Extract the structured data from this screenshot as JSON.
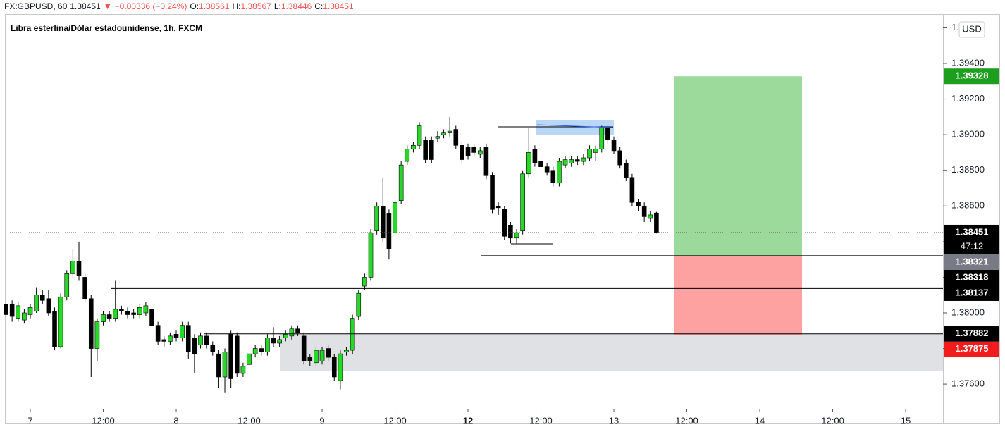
{
  "chart_data": {
    "type": "candlestick",
    "title": "Libra esterlina/Dólar estadounidense, 1h, FXCM",
    "header": [
      {
        "text": "FX:GBPUSD, 60",
        "color": "#131722"
      },
      {
        "text": "1.38451",
        "color": "#131722"
      },
      {
        "text": "▼",
        "color": "#ef5350"
      },
      {
        "text": "−0.00336 (−0.24%)",
        "color": "#ef5350"
      },
      {
        "text": "O:",
        "color": "#131722"
      },
      {
        "text": "1.38561",
        "color": "#ef5350"
      },
      {
        "text": "H:",
        "color": "#131722"
      },
      {
        "text": "1.38567",
        "color": "#ef5350"
      },
      {
        "text": "L:",
        "color": "#131722"
      },
      {
        "text": "1.38446",
        "color": "#ef5350"
      },
      {
        "text": "C:",
        "color": "#131722"
      },
      {
        "text": "1.38451",
        "color": "#ef5350"
      }
    ],
    "currency": "USD",
    "up_color": "#26d926",
    "down_color": "#000000",
    "x": [
      -4,
      -3,
      -2,
      -1,
      0,
      1,
      2,
      3,
      4,
      5,
      6,
      7,
      8,
      9,
      10,
      11,
      12,
      13,
      14,
      15,
      16,
      17,
      18,
      19,
      20,
      21,
      22,
      23,
      24,
      25,
      26,
      27,
      28,
      29,
      30,
      31,
      32,
      33,
      34,
      35,
      36,
      37,
      38,
      39,
      40,
      41,
      42,
      43,
      44,
      45,
      46,
      47,
      48,
      49,
      50,
      51,
      52,
      53,
      54,
      55,
      56,
      57,
      58,
      59,
      60,
      61,
      62,
      63,
      64,
      65,
      66,
      67,
      68,
      69,
      70,
      71,
      72,
      73,
      74,
      75,
      76,
      77,
      78,
      79,
      80,
      81,
      82,
      83,
      84,
      85,
      86,
      87,
      88,
      89,
      90,
      91,
      92,
      93,
      94,
      95,
      96,
      97,
      98,
      99,
      100,
      101,
      102,
      103
    ],
    "open": [
      1.3805,
      1.3805,
      1.3797,
      1.3796,
      1.3799,
      1.3801,
      1.381,
      1.3808,
      1.3801,
      1.3781,
      1.3809,
      1.3822,
      1.3829,
      1.382,
      1.3808,
      1.378,
      1.3795,
      1.3799,
      1.3797,
      1.3802,
      1.3801,
      1.38,
      1.3799,
      1.38,
      1.3802,
      1.3793,
      1.3785,
      1.3784,
      1.3788,
      1.3786,
      1.3793,
      1.3786,
      1.3782,
      1.3787,
      1.3782,
      1.3777,
      1.3764,
      1.3788,
      1.3787,
      1.3766,
      1.3771,
      1.3777,
      1.378,
      1.3778,
      1.3786,
      1.3783,
      1.3786,
      1.3787,
      1.3791,
      1.3787,
      1.3775,
      1.3772,
      1.3773,
      1.378,
      1.3775,
      1.3762,
      1.3778,
      1.3779,
      1.3798,
      1.3815,
      1.382,
      1.3846,
      1.386,
      1.3856,
      1.3845,
      1.3863,
      1.3885,
      1.3892,
      1.3894,
      1.3897,
      1.3897,
      1.3898,
      1.39,
      1.3901,
      1.3903,
      1.3894,
      1.3893,
      1.3893,
      1.3889,
      1.3893,
      1.3877,
      1.386,
      1.3858,
      1.3849,
      1.3842,
      1.3846,
      1.3878,
      1.3892,
      1.3885,
      1.3882,
      1.388,
      1.3873,
      1.3883,
      1.3884,
      1.3886,
      1.3885,
      1.3887,
      1.389,
      1.3892,
      1.3904,
      1.3897,
      1.3891,
      1.3884,
      1.3876,
      1.3862,
      1.386,
      1.3853,
      1.38561
    ],
    "high": [
      1.3807,
      1.3807,
      1.3806,
      1.3802,
      1.3805,
      1.3814,
      1.3813,
      1.3813,
      1.3803,
      1.3811,
      1.3824,
      1.3836,
      1.384,
      1.3822,
      1.381,
      1.3797,
      1.3801,
      1.3801,
      1.3818,
      1.3804,
      1.3803,
      1.3802,
      1.3805,
      1.3806,
      1.3804,
      1.3795,
      1.3787,
      1.3789,
      1.379,
      1.3795,
      1.3795,
      1.3788,
      1.3789,
      1.3789,
      1.3784,
      1.3779,
      1.378,
      1.379,
      1.3789,
      1.3772,
      1.3779,
      1.3782,
      1.3782,
      1.3788,
      1.3792,
      1.3787,
      1.379,
      1.3793,
      1.3793,
      1.3789,
      1.3777,
      1.3781,
      1.3781,
      1.3782,
      1.3777,
      1.3779,
      1.3781,
      1.3799,
      1.3813,
      1.3822,
      1.3847,
      1.3862,
      1.3876,
      1.3858,
      1.3864,
      1.3885,
      1.3894,
      1.3896,
      1.3907,
      1.3899,
      1.3899,
      1.3902,
      1.3903,
      1.391,
      1.3905,
      1.3896,
      1.3895,
      1.3895,
      1.3893,
      1.3895,
      1.3879,
      1.3862,
      1.386,
      1.3851,
      1.3847,
      1.388,
      1.3904,
      1.3894,
      1.3887,
      1.3884,
      1.3882,
      1.3887,
      1.3888,
      1.3888,
      1.3888,
      1.3889,
      1.3894,
      1.3894,
      1.3905,
      1.3905,
      1.3899,
      1.3893,
      1.3886,
      1.3878,
      1.3864,
      1.3862,
      1.3857,
      1.38567
    ],
    "low": [
      1.3796,
      1.3795,
      1.3795,
      1.3794,
      1.3797,
      1.38,
      1.3805,
      1.3798,
      1.3779,
      1.378,
      1.3807,
      1.382,
      1.3818,
      1.3806,
      1.3764,
      1.3773,
      1.3793,
      1.3795,
      1.3795,
      1.3799,
      1.3797,
      1.3797,
      1.3797,
      1.3798,
      1.3791,
      1.3782,
      1.3781,
      1.3782,
      1.3784,
      1.3784,
      1.3774,
      1.3766,
      1.378,
      1.378,
      1.3776,
      1.3758,
      1.3755,
      1.3758,
      1.3764,
      1.3764,
      1.3769,
      1.3775,
      1.3776,
      1.3776,
      1.3781,
      1.3781,
      1.3784,
      1.3785,
      1.3787,
      1.3771,
      1.377,
      1.377,
      1.3771,
      1.3773,
      1.3762,
      1.3757,
      1.3776,
      1.3777,
      1.3796,
      1.3813,
      1.3818,
      1.3844,
      1.384,
      1.383,
      1.3843,
      1.3861,
      1.3883,
      1.389,
      1.3892,
      1.3884,
      1.3884,
      1.3896,
      1.3898,
      1.3899,
      1.3892,
      1.3884,
      1.3886,
      1.3888,
      1.3887,
      1.3875,
      1.3856,
      1.3855,
      1.3841,
      1.3839,
      1.3839,
      1.3844,
      1.3876,
      1.3882,
      1.388,
      1.3877,
      1.3871,
      1.3871,
      1.3881,
      1.3882,
      1.3883,
      1.3883,
      1.3885,
      1.3885,
      1.389,
      1.3895,
      1.3889,
      1.3881,
      1.3874,
      1.386,
      1.3857,
      1.3851,
      1.3851,
      1.38446
    ],
    "close": [
      1.3799,
      1.3798,
      1.3804,
      1.38,
      1.3803,
      1.381,
      1.3807,
      1.38,
      1.3781,
      1.3809,
      1.3822,
      1.3829,
      1.3821,
      1.3808,
      1.378,
      1.3795,
      1.3799,
      1.3797,
      1.3802,
      1.3801,
      1.3799,
      1.3799,
      1.3803,
      1.3804,
      1.3793,
      1.3784,
      1.3784,
      1.3787,
      1.3786,
      1.3793,
      1.3778,
      1.3777,
      1.3787,
      1.3782,
      1.3778,
      1.3764,
      1.3778,
      1.3763,
      1.3766,
      1.377,
      1.3777,
      1.378,
      1.3778,
      1.3786,
      1.3783,
      1.3785,
      1.3788,
      1.3791,
      1.3789,
      1.3773,
      1.3773,
      1.3779,
      1.3779,
      1.3775,
      1.3764,
      1.3777,
      1.3779,
      1.3797,
      1.3811,
      1.382,
      1.3845,
      1.386,
      1.3842,
      1.3836,
      1.3862,
      1.3883,
      1.3892,
      1.3894,
      1.3905,
      1.3886,
      1.3886,
      1.3899,
      1.3901,
      1.3902,
      1.3894,
      1.3886,
      1.3888,
      1.389,
      1.3891,
      1.3877,
      1.3858,
      1.3859,
      1.3843,
      1.3842,
      1.3845,
      1.3878,
      1.389,
      1.3884,
      1.3882,
      1.3879,
      1.3873,
      1.3885,
      1.3886,
      1.3886,
      1.3885,
      1.3887,
      1.3892,
      1.3892,
      1.3904,
      1.3897,
      1.3891,
      1.3883,
      1.3876,
      1.3862,
      1.386,
      1.3854,
      1.3855,
      1.38451
    ],
    "xlim": [
      -4.06,
      150.14
    ],
    "ylim": [
      1.37462,
      1.39669
    ],
    "xticks": [
      {
        "value": 0,
        "label": "7"
      },
      {
        "value": 12,
        "label": "12:00"
      },
      {
        "value": 24,
        "label": "8"
      },
      {
        "value": 36,
        "label": "12:00"
      },
      {
        "value": 48,
        "label": "9"
      },
      {
        "value": 60,
        "label": "12:00"
      },
      {
        "value": 72,
        "label": "12"
      },
      {
        "value": 84,
        "label": "12:00"
      },
      {
        "value": 96,
        "label": "13"
      },
      {
        "value": 108,
        "label": "12:00"
      },
      {
        "value": 120,
        "label": "14"
      },
      {
        "value": 132,
        "label": "12:00"
      },
      {
        "value": 144,
        "label": "15"
      }
    ],
    "yticks": [
      {
        "value": 1.376,
        "label": "1.37600"
      },
      {
        "value": 1.378,
        "label": "1.37800"
      },
      {
        "value": 1.38,
        "label": "1.38000"
      },
      {
        "value": 1.382,
        "label": "1.38200"
      },
      {
        "value": 1.384,
        "label": "1.38400"
      },
      {
        "value": 1.386,
        "label": "1.38600"
      },
      {
        "value": 1.388,
        "label": "1.38800"
      },
      {
        "value": 1.39,
        "label": "1.39000"
      },
      {
        "value": 1.392,
        "label": "1.39200"
      },
      {
        "value": 1.394,
        "label": "1.39400"
      },
      {
        "value": 1.396,
        "label": "1.39600"
      }
    ],
    "price_labels": [
      {
        "value": 1.39328,
        "color": "#1e9e1e"
      },
      {
        "value": 1.38451,
        "color": "#000000",
        "countdown": "47:12"
      },
      {
        "value": 1.38321,
        "color": "#787b86"
      },
      {
        "value": 1.38318,
        "color": "#000000"
      },
      {
        "value": 1.38137,
        "color": "#000000"
      },
      {
        "value": 1.37882,
        "color": "#000000"
      },
      {
        "value": 1.37875,
        "color": "#f21c1c"
      }
    ]
  }
}
